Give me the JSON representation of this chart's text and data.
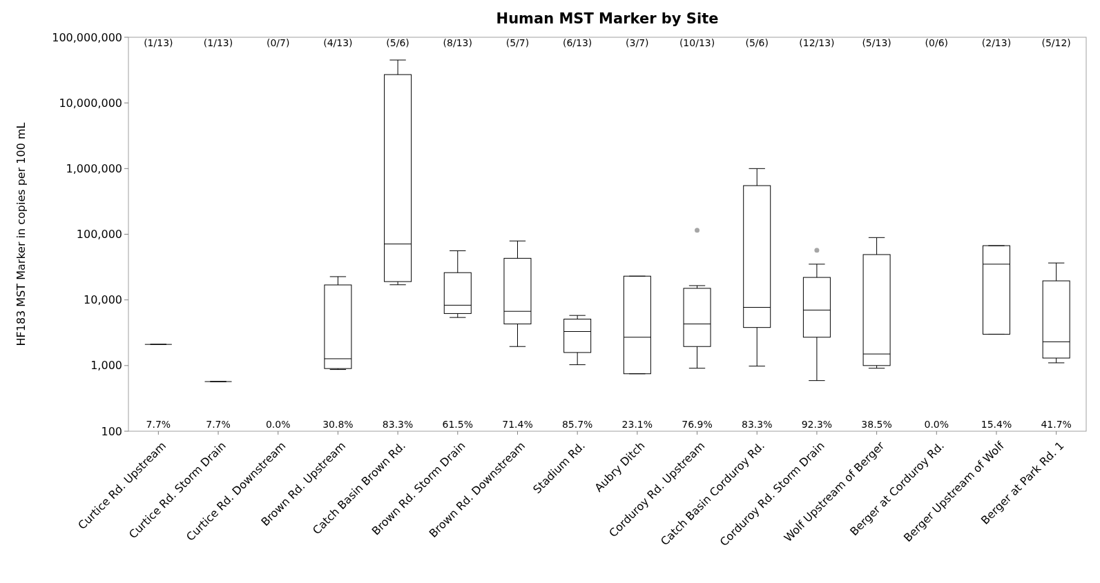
{
  "chart_data": {
    "type": "box",
    "title": "Human MST Marker by Site",
    "ylabel": "HF183 MST Marker in copies per 100 mL",
    "log": true,
    "grid": false,
    "categories": [
      "Curtice Rd. Upstream",
      "Curtice Rd. Storm Drain",
      "Curtice Rd. Downstream",
      "Brown Rd. Upstream",
      "Catch Basin Brown Rd.",
      "Brown Rd. Storm Drain",
      "Brown Rd. Downstream",
      "Stadium Rd.",
      "Aubry Ditch",
      "Corduroy Rd. Upstream",
      "Catch Basin Corduroy Rd.",
      "Corduroy Rd. Storm Drain",
      "Wolf Upstream of Berger",
      "Berger at Corduroy Rd.",
      "Berger Upstream of Wolf",
      "Berger at Park Rd. 1"
    ],
    "ylim": [
      100,
      100000000
    ],
    "yticks": [
      100,
      {
        "value": 1000,
        "label": "1,000"
      },
      {
        "value": 10000,
        "label": "10,000"
      },
      {
        "value": 100000,
        "label": "100,000"
      },
      {
        "value": 1000000,
        "label": "1,000,000"
      },
      {
        "value": 10000000,
        "label": "10,000,000"
      },
      {
        "value": 100000000,
        "label": "100,000,000"
      }
    ],
    "boxes": [
      {
        "low": 2100,
        "q1": 2100,
        "median": 2100,
        "q3": 2100,
        "high": 2100
      },
      {
        "low": 570,
        "q1": 570,
        "median": 570,
        "q3": 570,
        "high": 570
      },
      null,
      {
        "low": 870,
        "q1": 900,
        "median": 1270,
        "q3": 16900,
        "high": 22600
      },
      {
        "low": 17000,
        "q1": 19000,
        "median": 71000,
        "q3": 27000000,
        "high": 45000000
      },
      {
        "low": 5400,
        "q1": 6200,
        "median": 8300,
        "q3": 26000,
        "high": 56000
      },
      {
        "low": 1950,
        "q1": 4300,
        "median": 6700,
        "q3": 43000,
        "high": 79000
      },
      {
        "low": 1030,
        "q1": 1580,
        "median": 3300,
        "q3": 5100,
        "high": 5800
      },
      {
        "low": 750,
        "q1": 750,
        "median": 2700,
        "q3": 23000,
        "high": 23000
      },
      {
        "low": 910,
        "q1": 1950,
        "median": 4300,
        "q3": 15000,
        "high": 16500,
        "outliers": [
          115000
        ]
      },
      {
        "low": 980,
        "q1": 3800,
        "median": 7700,
        "q3": 550000,
        "high": 1000000
      },
      {
        "low": 590,
        "q1": 2700,
        "median": 7000,
        "q3": 22000,
        "high": 35000,
        "outliers": [
          57000
        ]
      },
      {
        "low": 910,
        "q1": 1000,
        "median": 1500,
        "q3": 49000,
        "high": 89000
      },
      null,
      {
        "low": 3000,
        "q1": 3000,
        "median": 35000,
        "q3": 67000,
        "high": 67000
      },
      {
        "low": 1100,
        "q1": 1300,
        "median": 2300,
        "q3": 19500,
        "high": 36500
      }
    ],
    "annotations": [
      "(1/13)",
      "(1/13)",
      "(0/7)",
      "(4/13)",
      "(5/6)",
      "(8/13)",
      "(5/7)",
      "(6/13)",
      "(3/7)",
      "(10/13)",
      "(5/6)",
      "(12/13)",
      "(5/13)",
      "(0/6)",
      "(2/13)",
      "(5/12)",
      "7.7%",
      "7.7%",
      "0.0%",
      "30.8%",
      "83.3%",
      "61.5%",
      "71.4%",
      "85.7%",
      "23.1%",
      "76.9%",
      "83.3%",
      "92.3%",
      "38.5%",
      "0.0%",
      "15.4%",
      "41.7%"
    ]
  }
}
